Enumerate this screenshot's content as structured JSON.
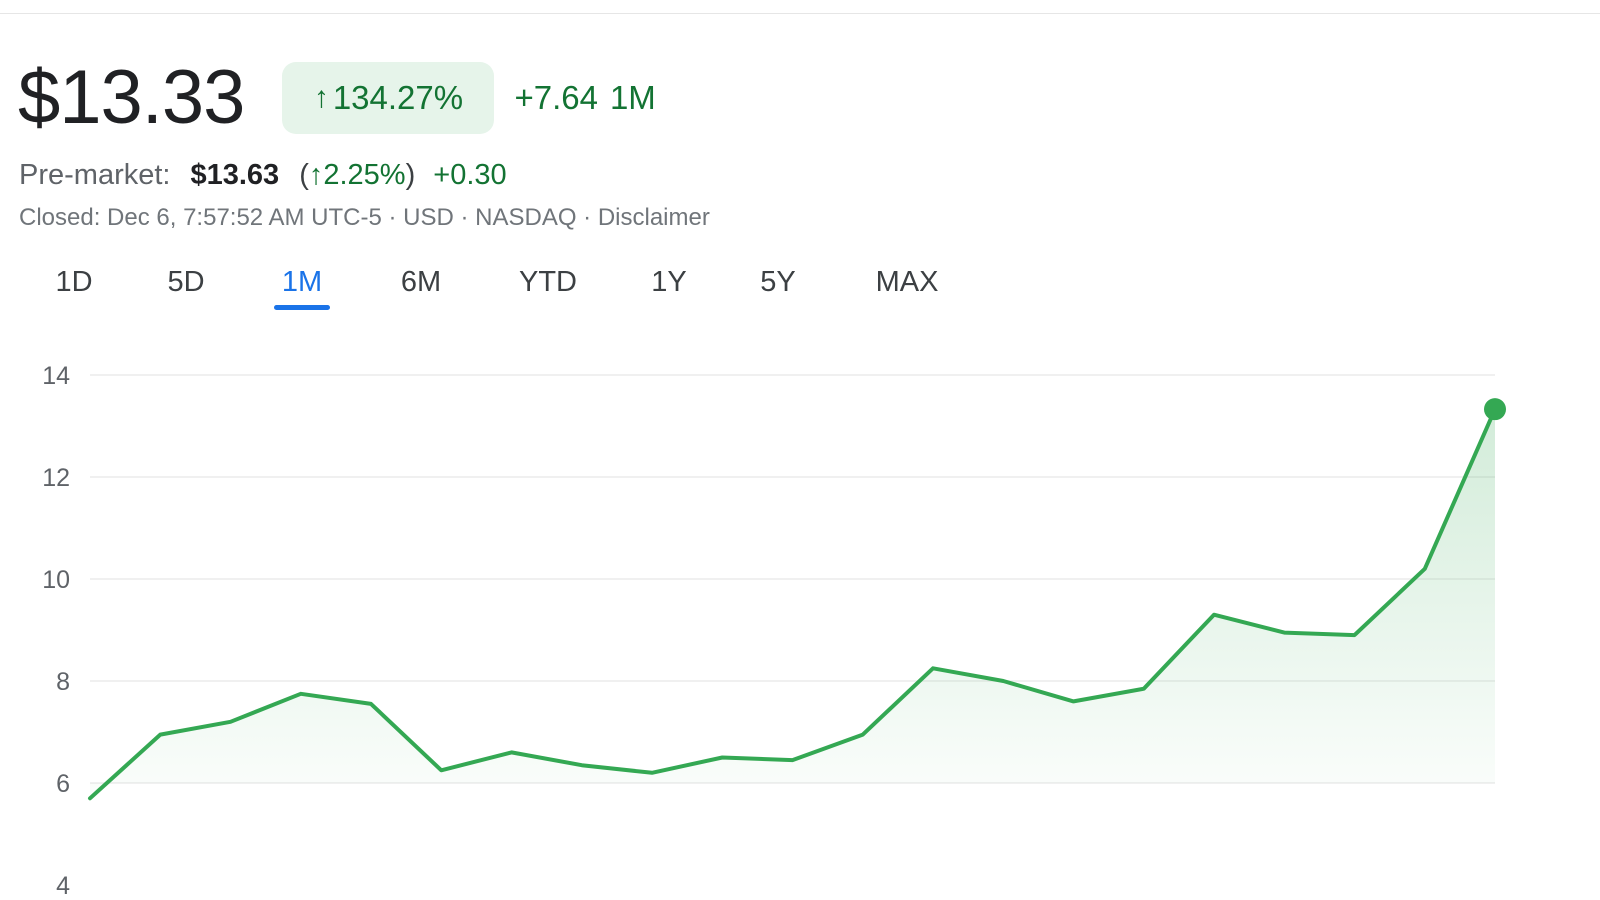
{
  "quote": {
    "price": "$13.33",
    "change_pct": "134.27%",
    "change_abs": "+7.64",
    "period_label": "1M"
  },
  "premarket": {
    "label": "Pre-market:",
    "price": "$13.63",
    "open_paren": "(",
    "change_pct": "2.25%",
    "close_paren": ")",
    "change_abs": "+0.30"
  },
  "status": {
    "text": "Closed: Dec 6, 7:57:52 AM UTC-5 · USD · NASDAQ · Disclaimer"
  },
  "range_tabs": [
    "1D",
    "5D",
    "1M",
    "6M",
    "YTD",
    "1Y",
    "5Y",
    "MAX"
  ],
  "active_tab": "1M",
  "colors": {
    "up_green": "#137333",
    "line_green": "#34a853",
    "accent_blue": "#1a73e8",
    "badge_bg": "#e6f4ea"
  },
  "icons": {
    "up_arrow": "arrow-up-icon"
  },
  "chart_data": {
    "type": "line",
    "title": "",
    "xlabel": "",
    "ylabel": "",
    "ylim": [
      4,
      14
    ],
    "yticks": [
      "14",
      "12",
      "10",
      "8",
      "6",
      "4"
    ],
    "grid": true,
    "area_fill": true,
    "series": [
      {
        "values": [
          5.7,
          6.95,
          7.2,
          7.75,
          7.55,
          6.25,
          6.6,
          6.35,
          6.2,
          6.5,
          6.45,
          6.95,
          8.25,
          8.0,
          7.6,
          7.85,
          9.3,
          8.95,
          8.9,
          10.2,
          13.33
        ]
      }
    ]
  }
}
